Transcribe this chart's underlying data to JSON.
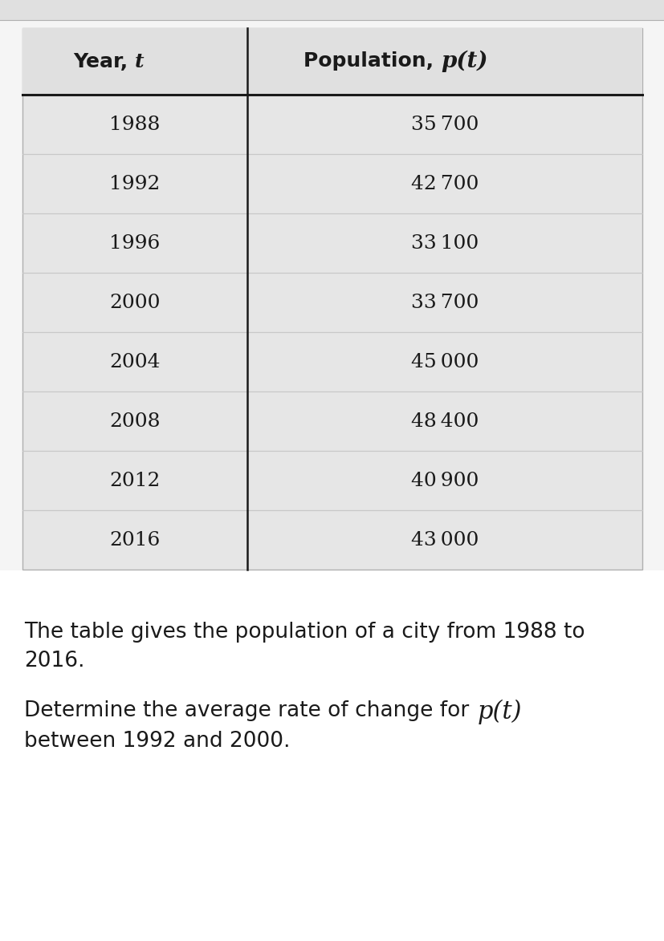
{
  "years": [
    "1988",
    "1992",
    "1996",
    "2000",
    "2004",
    "2008",
    "2012",
    "2016"
  ],
  "populations": [
    "35 700",
    "42 700",
    "33 100",
    "33 700",
    "45 000",
    "48 400",
    "40 900",
    "43 000"
  ],
  "col1_header_plain": "Year, ",
  "col1_header_italic": "t",
  "col2_header_plain": "Population, ",
  "col2_header_italic": "p(t)",
  "table_bg": "#e6e6e6",
  "header_bg": "#e0e0e0",
  "row_line_color": "#c8c8c8",
  "outer_border_color": "#b0b0b0",
  "header_line_color": "#1a1a1a",
  "divider_color": "#1a1a1a",
  "text_color": "#1a1a1a",
  "body_text1": "The table gives the population of a city from 1988 to",
  "body_text2": "2016.",
  "body_text3": "Determine the average rate of change for ",
  "body_text3_math": "p(t)",
  "body_text4": "between 1992 and 2000.",
  "body_fontsize": 19,
  "table_fontsize": 18,
  "header_fontsize": 18,
  "page_bg": "#f5f5f5",
  "top_bar_color": "#e0e0e0",
  "top_bar_height": 25
}
